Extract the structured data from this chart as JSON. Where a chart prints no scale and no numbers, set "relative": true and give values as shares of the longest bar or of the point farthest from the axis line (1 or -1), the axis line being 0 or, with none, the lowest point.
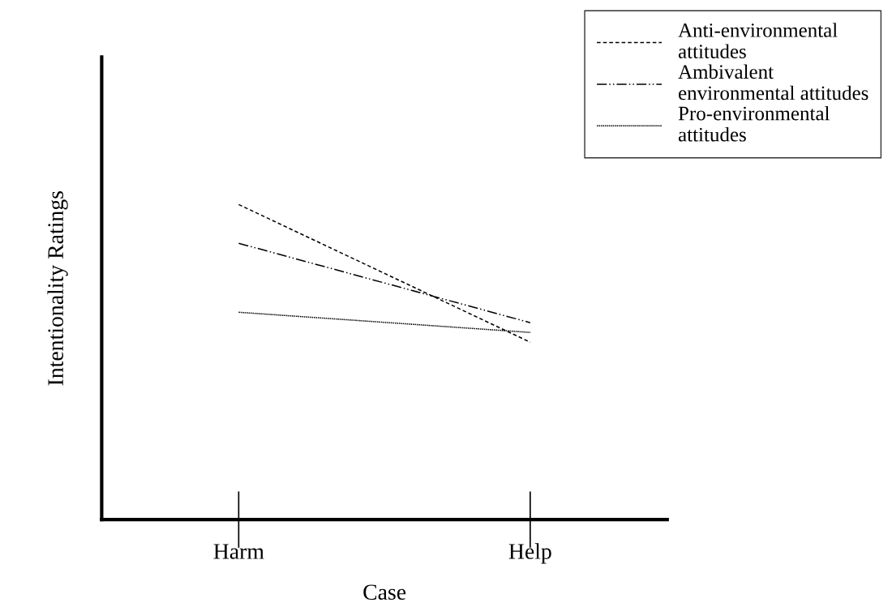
{
  "chart_data": {
    "type": "line",
    "relative": true,
    "xlabel": "Case",
    "ylabel": "Intentionality Ratings",
    "categories": [
      "Harm",
      "Help"
    ],
    "legend": "top right",
    "grid": false,
    "marker": "none",
    "series": [
      {
        "name": "Anti-environmental attitudes",
        "color": "#000000",
        "line_style": "dashed",
        "values": [
          1,
          0.563
        ]
      },
      {
        "name": "Ambivalent environmental attitudes",
        "color": "#000000",
        "line_style": "dashdotdot",
        "values": [
          0.877,
          0.625
        ]
      },
      {
        "name": "Pro-environmental attitudes",
        "color": "#000000",
        "line_style": "dotted",
        "values": [
          0.658,
          0.594
        ]
      }
    ]
  }
}
